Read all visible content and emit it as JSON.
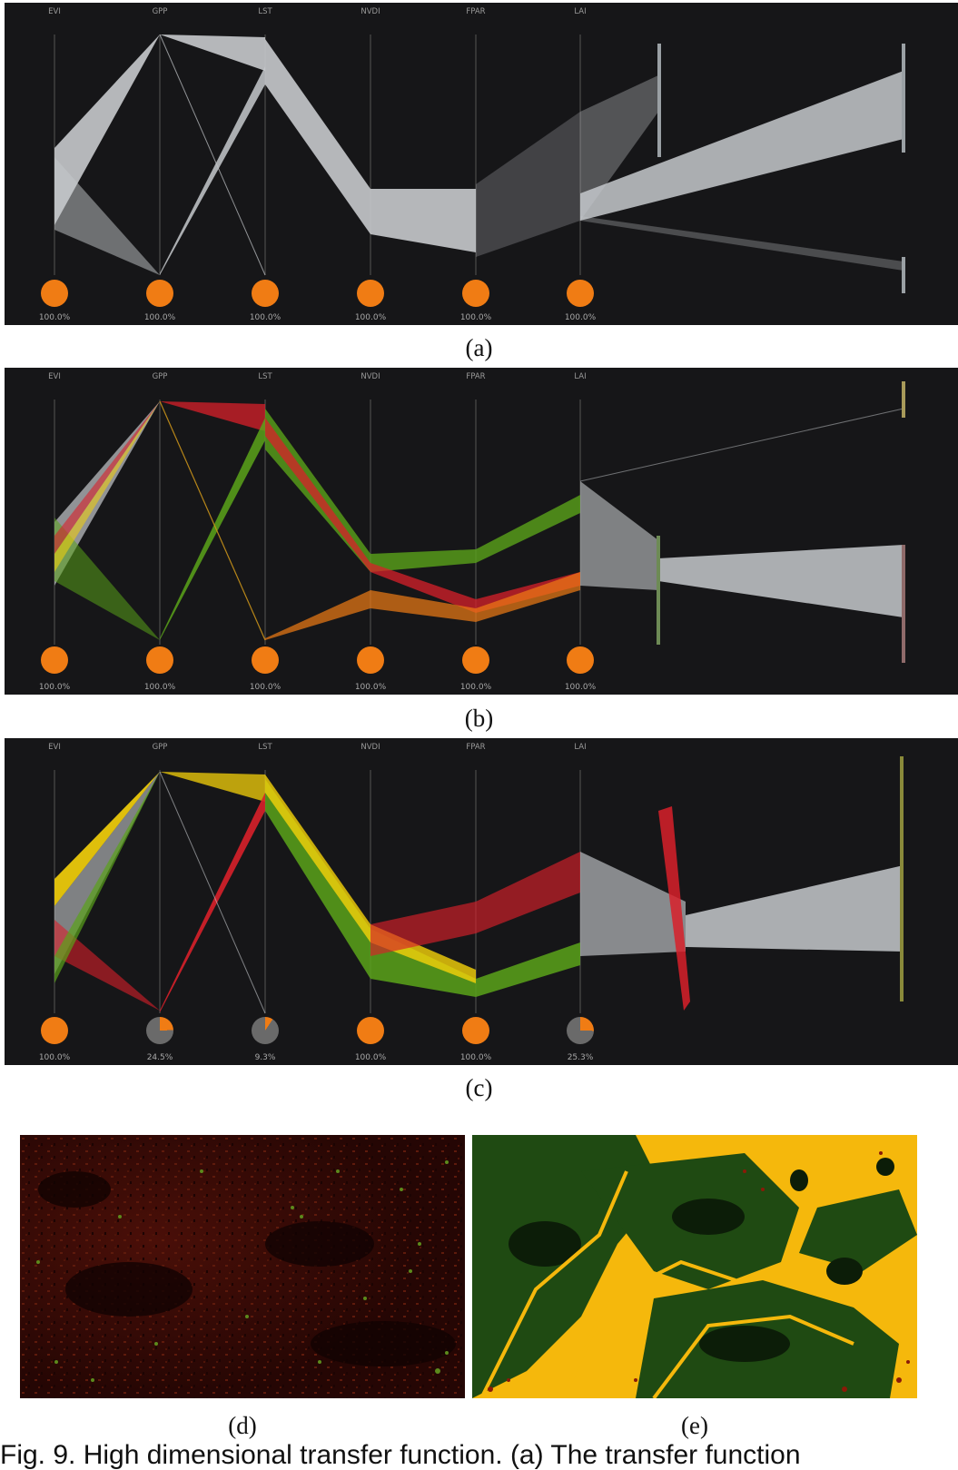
{
  "axes": [
    "EVI",
    "GPP",
    "LST",
    "NVDI",
    "FPAR",
    "LAI"
  ],
  "colors": {
    "background": "#161618",
    "line_gray": "#c6c9cc",
    "orange": "#f07c14",
    "red": "#d8202a",
    "green": "#5aa31a",
    "yellow": "#f5d20a",
    "pie_gray": "#6a6a6a"
  },
  "panels": [
    {
      "id": "a",
      "caption": "(a)",
      "percents": [
        "100.0%",
        "100.0%",
        "100.0%",
        "100.0%",
        "100.0%",
        "100.0%"
      ],
      "fractions": [
        1,
        1,
        1,
        1,
        1,
        1
      ]
    },
    {
      "id": "b",
      "caption": "(b)",
      "percents": [
        "100.0%",
        "100.0%",
        "100.0%",
        "100.0%",
        "100.0%",
        "100.0%"
      ],
      "fractions": [
        1,
        1,
        1,
        1,
        1,
        1
      ]
    },
    {
      "id": "c",
      "caption": "(c)",
      "percents": [
        "100.0%",
        "24.5%",
        "9.3%",
        "100.0%",
        "100.0%",
        "25.3%"
      ],
      "fractions": [
        1,
        0.245,
        0.093,
        1,
        1,
        0.253
      ]
    }
  ],
  "maps": [
    {
      "id": "d",
      "caption": "(d)"
    },
    {
      "id": "e",
      "caption": "(e)"
    }
  ],
  "footer_text": "Fig. 9.  High dimensional transfer function. (a) The transfer function"
}
